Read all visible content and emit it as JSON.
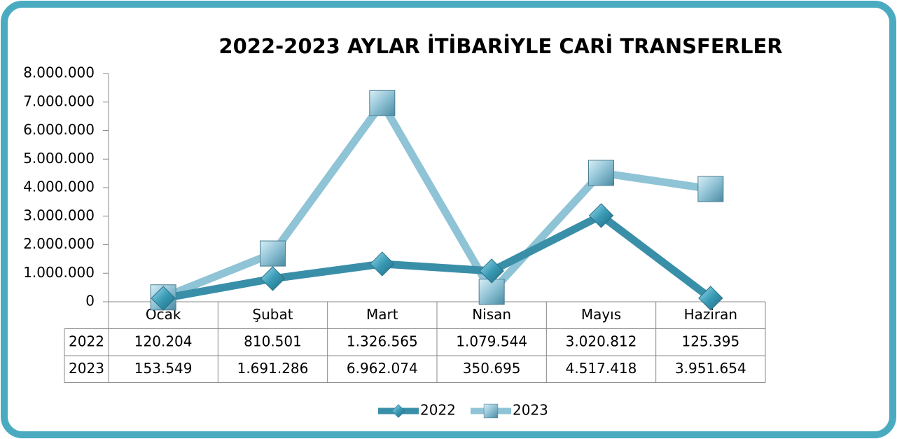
{
  "chart_data": {
    "type": "line",
    "title": "2022-2023 AYLAR İTİBARİYLE CARİ TRANSFERLER",
    "categories": [
      "Ocak",
      "Şubat",
      "Mart",
      "Nisan",
      "Mayıs",
      "Haziran"
    ],
    "series": [
      {
        "name": "2022",
        "color": "#3a8fa8",
        "marker": "diamond",
        "values": [
          120204,
          810501,
          1326565,
          1079544,
          3020812,
          125395
        ],
        "value_labels": [
          "120.204",
          "810.501",
          "1.326.565",
          "1.079.544",
          "3.020.812",
          "125.395"
        ]
      },
      {
        "name": "2023",
        "color": "#8fc3d6",
        "marker": "square",
        "values": [
          153549,
          1691286,
          6962074,
          350695,
          4517418,
          3951654
        ],
        "value_labels": [
          "153.549",
          "1.691.286",
          "6.962.074",
          "350.695",
          "4.517.418",
          "3.951.654"
        ]
      }
    ],
    "ylim": [
      0,
      8000000
    ],
    "yticks": [
      0,
      {
        "value": 1000000,
        "label": "1.000.000"
      },
      {
        "value": 2000000,
        "label": "2.000.000"
      },
      {
        "value": 3000000,
        "label": "3.000.000"
      },
      {
        "value": 4000000,
        "label": "4.000.000"
      },
      {
        "value": 5000000,
        "label": "5.000.000"
      },
      {
        "value": 6000000,
        "label": "6.000.000"
      },
      {
        "value": 7000000,
        "label": "7.000.000"
      },
      {
        "value": 8000000,
        "label": "8.000.000"
      }
    ],
    "legend": "bottom"
  }
}
